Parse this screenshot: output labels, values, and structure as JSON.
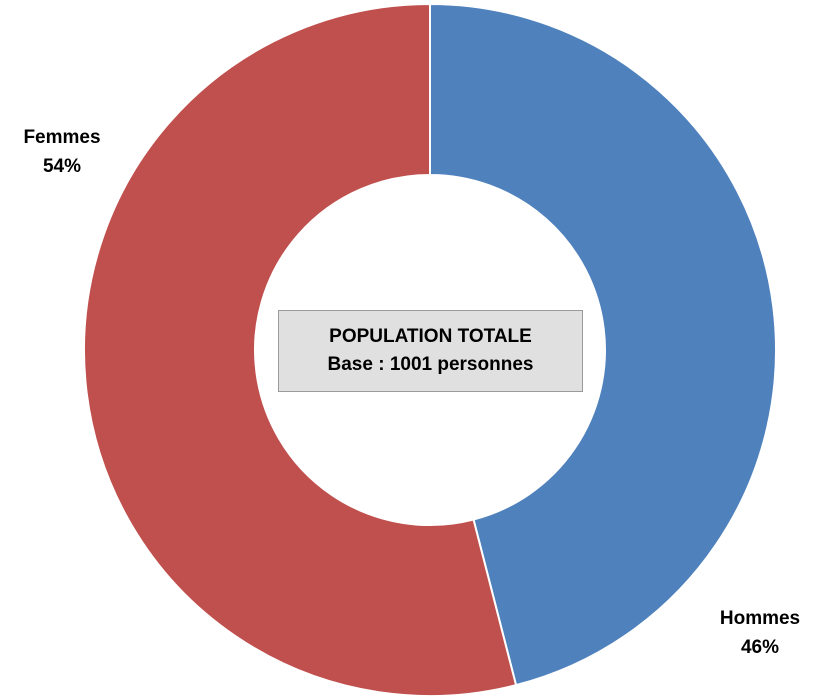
{
  "chart_data": {
    "type": "pie",
    "style": "donut",
    "center_text": [
      "POPULATION TOTALE",
      "Base : 1001 personnes"
    ],
    "slices": [
      {
        "label": "Hommes",
        "value": 46,
        "display": "46%",
        "color": "#4f81bd"
      },
      {
        "label": "Femmes",
        "value": 54,
        "display": "54%",
        "color": "#c0504d"
      }
    ],
    "start_angle_deg": 0,
    "direction": "clockwise"
  }
}
